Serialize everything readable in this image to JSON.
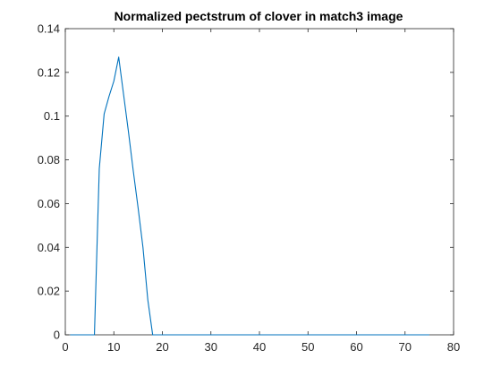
{
  "chart_data": {
    "type": "line",
    "title": "Normalized pectstrum of clover in match3 image",
    "xlabel": "",
    "ylabel": "",
    "xlim": [
      0,
      80
    ],
    "ylim": [
      0,
      0.14
    ],
    "xticks": [
      0,
      10,
      20,
      30,
      40,
      50,
      60,
      70,
      80
    ],
    "yticks": [
      0,
      0.02,
      0.04,
      0.06,
      0.08,
      0.1,
      0.12,
      0.14
    ],
    "xtick_labels": [
      "0",
      "10",
      "20",
      "30",
      "40",
      "50",
      "60",
      "70",
      "80"
    ],
    "ytick_labels": [
      "0",
      "0.02",
      "0.04",
      "0.06",
      "0.08",
      "0.1",
      "0.12",
      "0.14"
    ],
    "grid": false,
    "legend": "none",
    "series": [
      {
        "color": "#0072BD",
        "x": [
          1,
          2,
          3,
          4,
          5,
          6,
          7,
          8,
          9,
          10,
          11,
          12,
          13,
          14,
          15,
          16,
          17,
          18,
          19,
          20,
          25,
          30,
          35,
          40,
          45,
          50,
          55,
          60,
          65,
          70,
          75
        ],
        "y": [
          0,
          0,
          0,
          0,
          0,
          0,
          0.076,
          0.101,
          0.109,
          0.116,
          0.127,
          0.11,
          0.093,
          0.075,
          0.058,
          0.04,
          0.016,
          0,
          0,
          0,
          0,
          0,
          0,
          0,
          0,
          0,
          0,
          0,
          0,
          0,
          0
        ]
      }
    ]
  }
}
